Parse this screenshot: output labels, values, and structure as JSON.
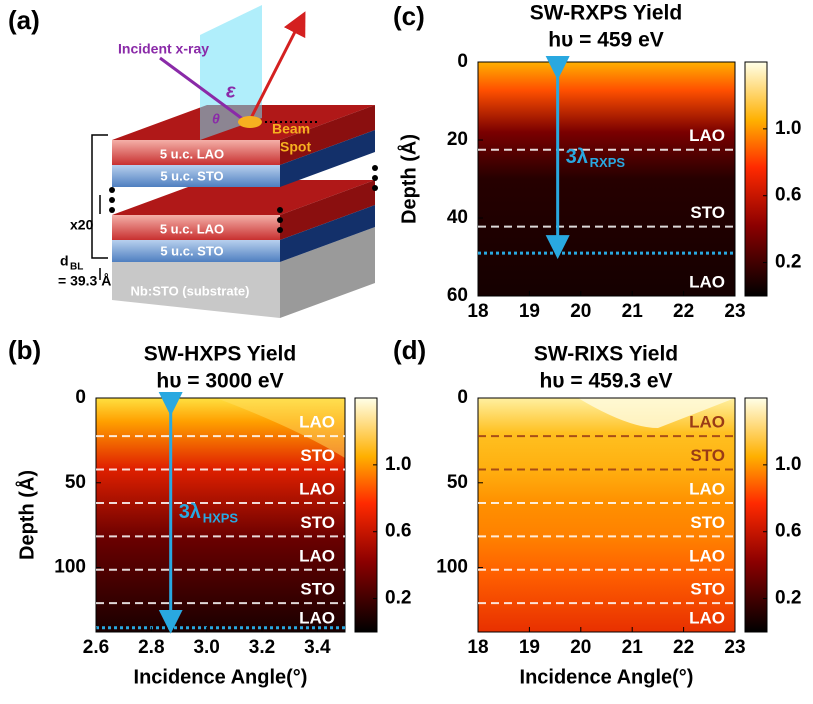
{
  "diagram": {
    "panel_label": "(a)",
    "incident": "Incident x-ray",
    "epsilon": "ε",
    "theta": "θ",
    "beam_spot": [
      "Beam",
      "Spot"
    ],
    "layers": [
      "5 u.c. LAO",
      "5 u.c. STO",
      "5 u.c. LAO",
      "5 u.c. STO"
    ],
    "repeat": "x20",
    "d_bl": {
      "main": "d",
      "sub": "BL",
      "value": "= 39.3 Å"
    },
    "substrate": "Nb:STO (substrate)"
  },
  "chart_data": [
    {
      "type": "heatmap",
      "panel_label": "(b)",
      "title": "SW-HXPS Yield",
      "subtitle": "hυ =  3000 eV",
      "xlabel": "Incidence Angle(°)",
      "ylabel": "Depth (Å)",
      "xlim": [
        2.6,
        3.5
      ],
      "xticks": [
        2.6,
        2.8,
        {
          "value": 3,
          "label": "3.0"
        },
        3.2,
        3.4
      ],
      "ylim": [
        0,
        138
      ],
      "yticks": [
        0,
        50,
        100
      ],
      "clim": [
        0,
        1.4
      ],
      "cticks": [
        0.2,
        0.6,
        {
          "value": 1,
          "label": "1.0"
        }
      ],
      "interfaces": [
        22.5,
        42.2,
        61.9,
        81.6,
        101.3,
        121
      ],
      "probe_depth": 135.5,
      "layers": [
        {
          "name": "LAO",
          "color": "#ffffff"
        },
        {
          "name": "STO",
          "color": "#ffffff"
        },
        {
          "name": "LAO",
          "color": "#ffffff"
        },
        {
          "name": "STO",
          "color": "#ffffff"
        },
        {
          "name": "LAO",
          "color": "#ffffff"
        },
        {
          "name": "STO",
          "color": "#ffffff"
        },
        {
          "name": "LAO",
          "color": "#ffffff"
        }
      ],
      "arrow": {
        "x": 2.87,
        "main": "3λ",
        "sub": "HXPS"
      }
    },
    {
      "type": "heatmap",
      "panel_label": "(c)",
      "title": "SW-RXPS Yield",
      "subtitle": "hυ =  459 eV",
      "ylabel": "Depth (Å)",
      "xlim": [
        18,
        23
      ],
      "xticks": [
        18,
        19,
        20,
        21,
        22,
        23
      ],
      "ylim": [
        0,
        60
      ],
      "yticks": [
        0,
        20,
        40,
        60
      ],
      "clim": [
        0,
        1.4
      ],
      "cticks": [
        0.2,
        0.6,
        {
          "value": 1,
          "label": "1.0"
        }
      ],
      "interfaces": [
        22.5,
        42.2
      ],
      "probe_depth": 49,
      "layers": [
        {
          "name": "LAO",
          "color": "#ffffff"
        },
        {
          "name": "STO",
          "color": "#ffffff"
        },
        {
          "name": "LAO",
          "color": "#ffffff"
        }
      ],
      "arrow": {
        "x": 19.55,
        "main": "3λ",
        "sub": "RXPS"
      }
    },
    {
      "type": "heatmap",
      "panel_label": "(d)",
      "title": "SW-RIXS Yield",
      "subtitle": "hυ =  459.3 eV",
      "xlabel": "Incidence Angle(°)",
      "xlim": [
        18,
        23
      ],
      "xticks": [
        18,
        19,
        20,
        21,
        22,
        23
      ],
      "ylim": [
        0,
        138
      ],
      "yticks": [
        0,
        50,
        100
      ],
      "clim": [
        0,
        1.4
      ],
      "cticks": [
        0.2,
        0.6,
        {
          "value": 1,
          "label": "1.0"
        }
      ],
      "interfaces": [
        22.5,
        42.2,
        61.9,
        81.6,
        101.3,
        121
      ],
      "layers": [
        {
          "name": "LAO",
          "color": "#9a3b16"
        },
        {
          "name": "STO",
          "color": "#9a3b16"
        },
        {
          "name": "LAO",
          "color": "#ffffff"
        },
        {
          "name": "STO",
          "color": "#ffffff"
        },
        {
          "name": "LAO",
          "color": "#ffffff"
        },
        {
          "name": "STO",
          "color": "#ffffff"
        },
        {
          "name": "LAO",
          "color": "#ffffff"
        }
      ]
    }
  ]
}
